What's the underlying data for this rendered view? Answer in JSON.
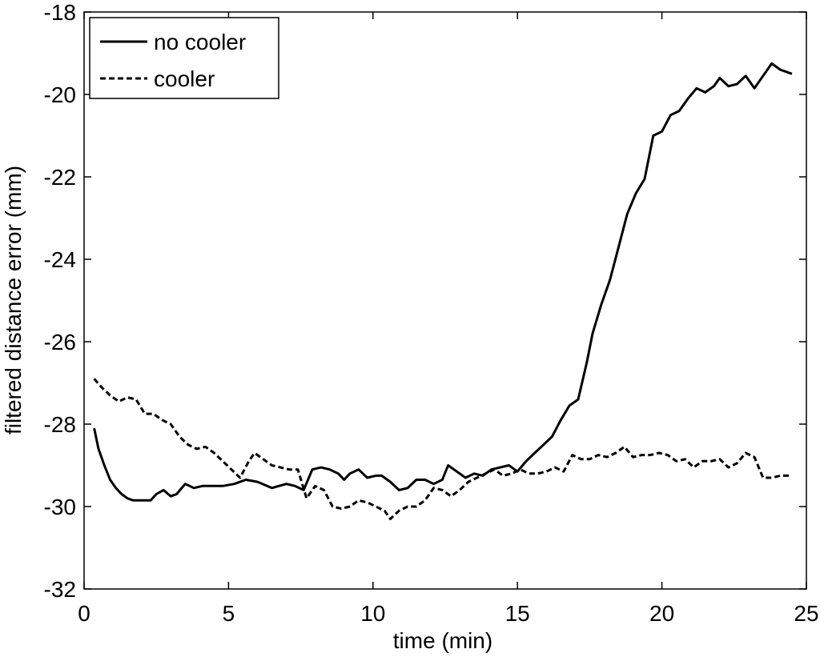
{
  "chart_data": {
    "type": "line",
    "title": "",
    "xlabel": "time (min)",
    "ylabel": "filtered distance error (mm)",
    "xlim": [
      0,
      25
    ],
    "ylim": [
      -32,
      -18
    ],
    "xticks": [
      0,
      5,
      10,
      15,
      20,
      25
    ],
    "yticks": [
      -32,
      -30,
      -28,
      -26,
      -24,
      -22,
      -20,
      -18
    ],
    "xtick_labels": [
      "0",
      "5",
      "10",
      "15",
      "20",
      "25"
    ],
    "ytick_labels": [
      "-32",
      "-30",
      "-28",
      "-26",
      "-24",
      "-22",
      "-20",
      "-18"
    ],
    "grid": false,
    "legend": {
      "position": "top-left",
      "entries": [
        "no cooler",
        "cooler"
      ]
    },
    "series": [
      {
        "name": "no cooler",
        "line_style": "solid",
        "color": "#000000",
        "x": [
          0.35,
          0.5,
          0.7,
          0.9,
          1.1,
          1.3,
          1.5,
          1.7,
          1.85,
          2.1,
          2.3,
          2.5,
          2.75,
          3.0,
          3.2,
          3.5,
          3.8,
          4.1,
          4.4,
          4.8,
          5.2,
          5.6,
          6.0,
          6.5,
          7.0,
          7.3,
          7.6,
          7.9,
          8.2,
          8.5,
          8.8,
          9.0,
          9.2,
          9.5,
          9.8,
          10.1,
          10.3,
          10.6,
          10.9,
          11.2,
          11.5,
          11.8,
          12.1,
          12.4,
          12.6,
          12.9,
          13.2,
          13.5,
          13.8,
          14.1,
          14.4,
          14.7,
          15.0,
          15.3,
          15.6,
          15.9,
          16.2,
          16.5,
          16.8,
          17.1,
          17.4,
          17.6,
          17.9,
          18.2,
          18.5,
          18.8,
          19.1,
          19.4,
          19.7,
          20.0,
          20.3,
          20.6,
          20.9,
          21.2,
          21.5,
          21.8,
          22.0,
          22.3,
          22.6,
          22.9,
          23.2,
          23.5,
          23.8,
          24.1,
          24.3,
          24.5
        ],
        "y": [
          -28.1,
          -28.6,
          -29.0,
          -29.35,
          -29.55,
          -29.7,
          -29.8,
          -29.85,
          -29.85,
          -29.85,
          -29.85,
          -29.7,
          -29.6,
          -29.75,
          -29.7,
          -29.45,
          -29.55,
          -29.5,
          -29.5,
          -29.5,
          -29.45,
          -29.35,
          -29.4,
          -29.55,
          -29.45,
          -29.5,
          -29.6,
          -29.1,
          -29.05,
          -29.1,
          -29.2,
          -29.35,
          -29.2,
          -29.1,
          -29.3,
          -29.25,
          -29.25,
          -29.4,
          -29.6,
          -29.55,
          -29.35,
          -29.35,
          -29.45,
          -29.35,
          -29.0,
          -29.15,
          -29.3,
          -29.2,
          -29.25,
          -29.1,
          -29.05,
          -29.0,
          -29.15,
          -28.9,
          -28.7,
          -28.5,
          -28.3,
          -27.9,
          -27.55,
          -27.4,
          -26.5,
          -25.8,
          -25.1,
          -24.5,
          -23.7,
          -22.9,
          -22.4,
          -22.05,
          -21.0,
          -20.9,
          -20.5,
          -20.4,
          -20.1,
          -19.85,
          -19.95,
          -19.8,
          -19.6,
          -19.8,
          -19.75,
          -19.55,
          -19.85,
          -19.55,
          -19.25,
          -19.4,
          -19.45,
          -19.5
        ]
      },
      {
        "name": "cooler",
        "line_style": "dashed",
        "color": "#000000",
        "x": [
          0.35,
          0.6,
          0.9,
          1.2,
          1.5,
          1.8,
          2.1,
          2.4,
          2.7,
          3.0,
          3.3,
          3.6,
          3.9,
          4.2,
          4.5,
          4.8,
          5.1,
          5.4,
          5.7,
          5.9,
          6.2,
          6.5,
          6.8,
          7.1,
          7.4,
          7.7,
          8.0,
          8.3,
          8.6,
          8.9,
          9.2,
          9.5,
          9.8,
          10.1,
          10.4,
          10.6,
          10.9,
          11.2,
          11.5,
          11.8,
          12.1,
          12.4,
          12.7,
          13.0,
          13.3,
          13.6,
          13.9,
          14.2,
          14.5,
          14.8,
          15.1,
          15.4,
          15.7,
          16.0,
          16.3,
          16.6,
          16.9,
          17.2,
          17.5,
          17.8,
          18.1,
          18.4,
          18.7,
          19.0,
          19.3,
          19.6,
          19.9,
          20.2,
          20.5,
          20.8,
          21.1,
          21.4,
          21.7,
          22.0,
          22.3,
          22.6,
          22.9,
          23.2,
          23.5,
          23.8,
          24.1,
          24.4
        ],
        "y": [
          -26.9,
          -27.1,
          -27.3,
          -27.45,
          -27.35,
          -27.4,
          -27.75,
          -27.75,
          -27.9,
          -28.0,
          -28.3,
          -28.5,
          -28.6,
          -28.55,
          -28.7,
          -28.9,
          -29.1,
          -29.3,
          -28.9,
          -28.7,
          -28.85,
          -29.0,
          -29.05,
          -29.1,
          -29.1,
          -29.8,
          -29.5,
          -29.6,
          -30.0,
          -30.05,
          -30.0,
          -29.85,
          -29.9,
          -30.0,
          -30.1,
          -30.3,
          -30.1,
          -30.0,
          -30.0,
          -29.85,
          -29.55,
          -29.6,
          -29.75,
          -29.6,
          -29.4,
          -29.3,
          -29.2,
          -29.1,
          -29.25,
          -29.2,
          -29.1,
          -29.2,
          -29.2,
          -29.15,
          -29.05,
          -29.15,
          -28.75,
          -28.85,
          -28.85,
          -28.75,
          -28.8,
          -28.7,
          -28.55,
          -28.8,
          -28.75,
          -28.75,
          -28.7,
          -28.75,
          -28.9,
          -28.85,
          -29.05,
          -28.9,
          -28.9,
          -28.85,
          -29.05,
          -28.95,
          -28.7,
          -28.8,
          -29.3,
          -29.3,
          -29.25,
          -29.25
        ]
      }
    ]
  }
}
